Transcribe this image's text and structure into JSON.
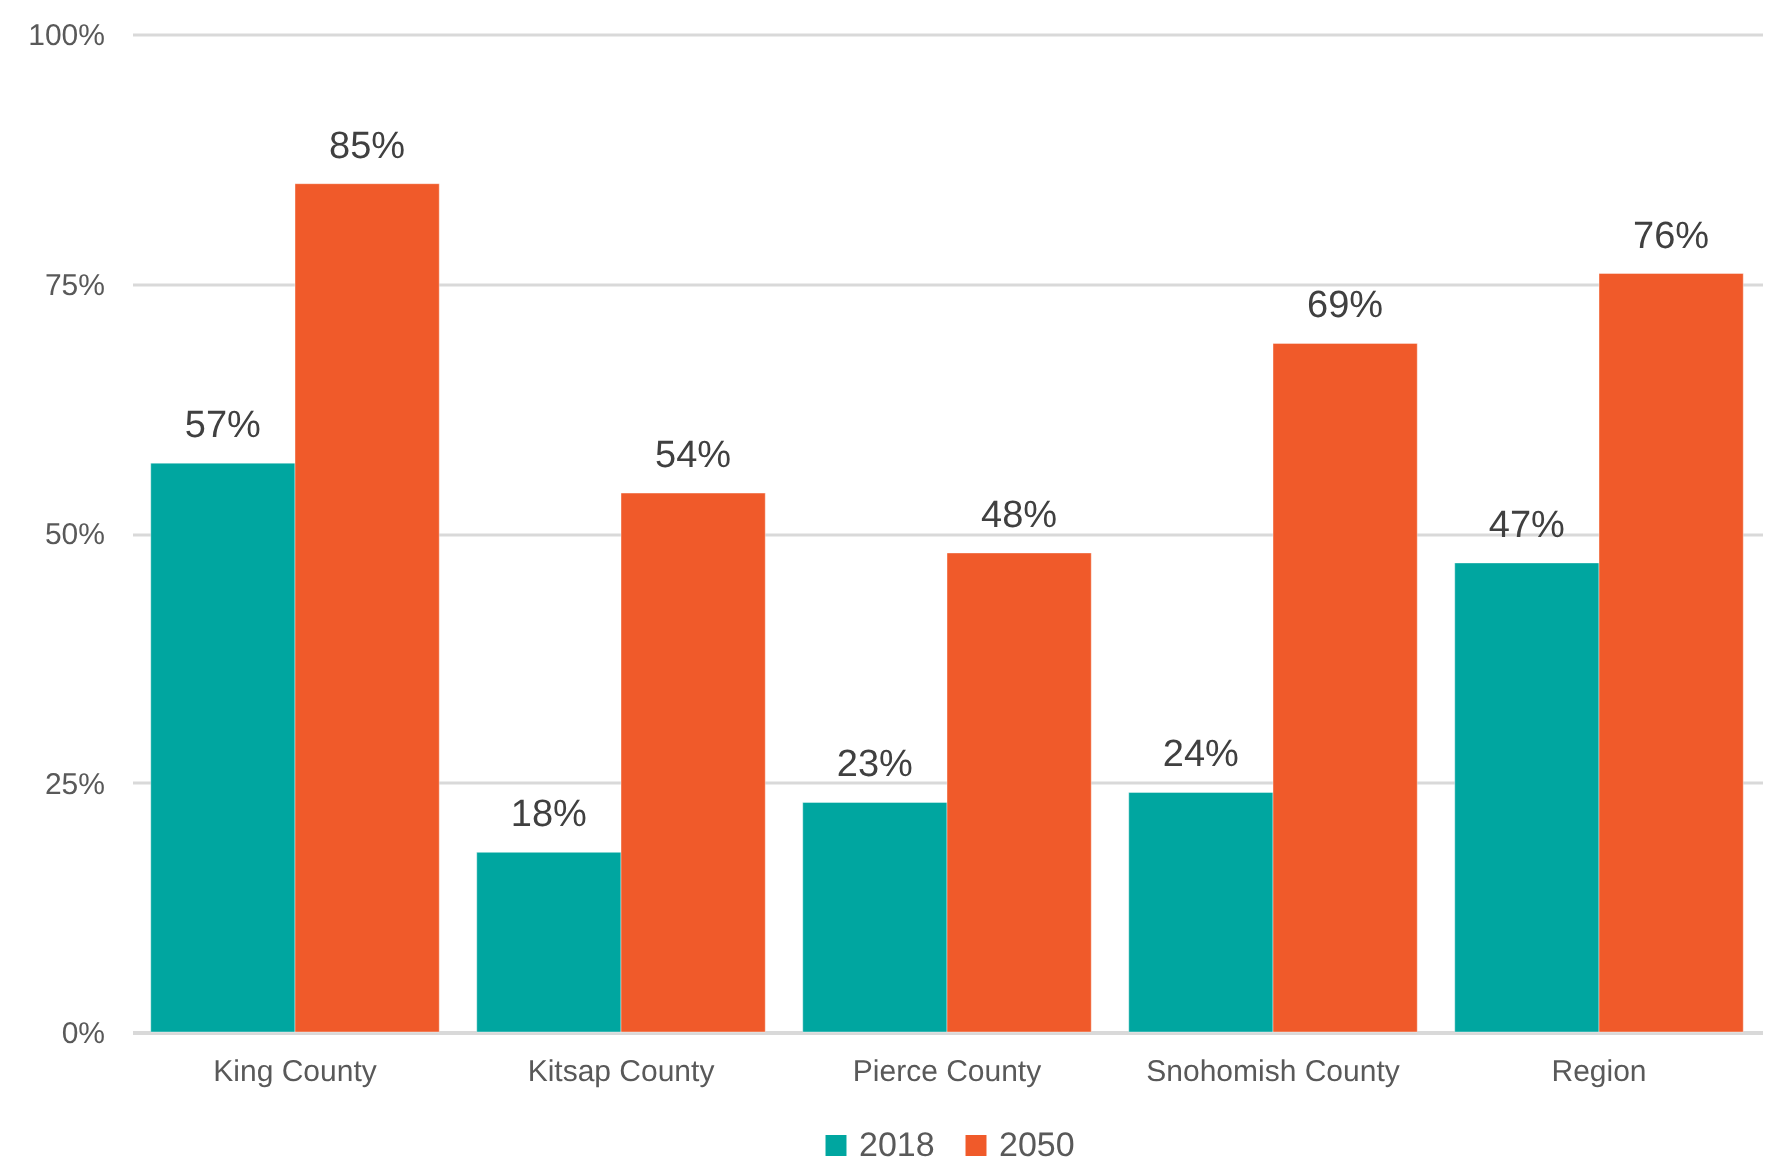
{
  "chart_data": {
    "type": "bar",
    "categories": [
      "King County",
      "Kitsap County",
      "Pierce County",
      "Snohomish County",
      "Region"
    ],
    "series": [
      {
        "name": "2018",
        "color": "#00a6a0",
        "values": [
          57,
          18,
          23,
          24,
          47
        ],
        "value_labels": [
          "57%",
          "18%",
          "23%",
          "24%",
          "47%"
        ]
      },
      {
        "name": "2050",
        "color": "#f05a2a",
        "values": [
          85,
          54,
          48,
          69,
          76
        ],
        "value_labels": [
          "85%",
          "54%",
          "48%",
          "69%",
          "76%"
        ]
      }
    ],
    "ylim": [
      0,
      100
    ],
    "yticks": [
      {
        "value": 0,
        "label": "0%"
      },
      {
        "value": 25,
        "label": "25%"
      },
      {
        "value": 50,
        "label": "50%"
      },
      {
        "value": 75,
        "label": "75%"
      },
      {
        "value": 100,
        "label": "100%"
      }
    ],
    "grid": "y",
    "legend": "bottom"
  }
}
